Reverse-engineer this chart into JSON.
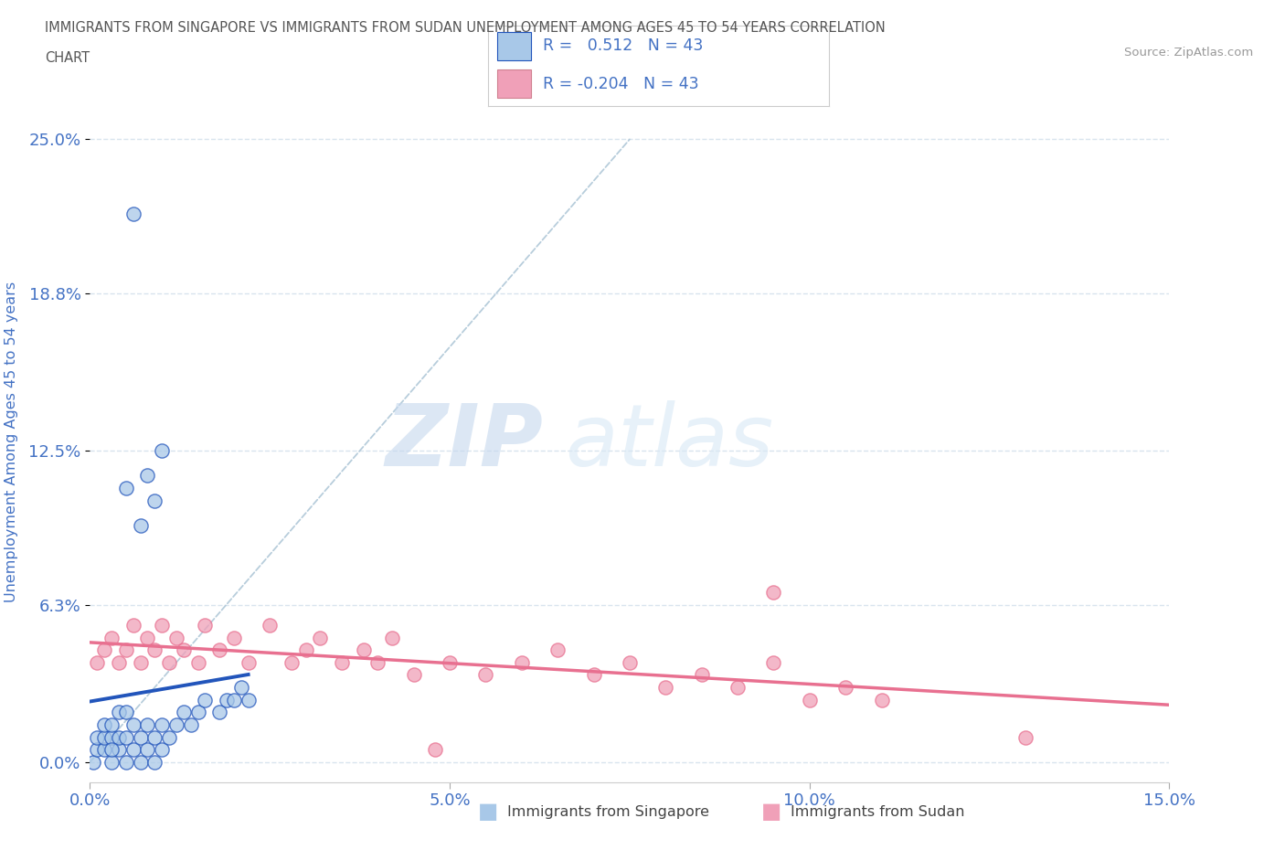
{
  "title_line1": "IMMIGRANTS FROM SINGAPORE VS IMMIGRANTS FROM SUDAN UNEMPLOYMENT AMONG AGES 45 TO 54 YEARS CORRELATION",
  "title_line2": "CHART",
  "source": "Source: ZipAtlas.com",
  "ylabel": "Unemployment Among Ages 45 to 54 years",
  "xmin": 0.0,
  "xmax": 0.15,
  "ymin": -0.008,
  "ymax": 0.265,
  "yticks": [
    0.0,
    0.063,
    0.125,
    0.188,
    0.25
  ],
  "ytick_labels": [
    "0.0%",
    "6.3%",
    "12.5%",
    "18.8%",
    "25.0%"
  ],
  "xticks": [
    0.0,
    0.05,
    0.1,
    0.15
  ],
  "xtick_labels": [
    "0.0%",
    "5.0%",
    "10.0%",
    "15.0%"
  ],
  "singapore_color": "#a8c8e8",
  "sudan_color": "#f0a0b8",
  "singapore_line_color": "#2255bb",
  "sudan_line_color": "#e87090",
  "ref_line_color": "#b0c8d8",
  "legend_R_singapore": "0.512",
  "legend_R_sudan": "-0.204",
  "legend_N": "43",
  "watermark_zip": "ZIP",
  "watermark_atlas": "atlas",
  "background_color": "#ffffff",
  "grid_color": "#d8e4ee",
  "title_color": "#555555",
  "axis_label_color": "#4472C4",
  "tick_label_color": "#4472C4",
  "sg_x": [
    0.0005,
    0.001,
    0.001,
    0.002,
    0.002,
    0.002,
    0.003,
    0.003,
    0.003,
    0.004,
    0.004,
    0.004,
    0.005,
    0.005,
    0.005,
    0.006,
    0.006,
    0.007,
    0.007,
    0.008,
    0.008,
    0.009,
    0.009,
    0.01,
    0.01,
    0.011,
    0.012,
    0.013,
    0.014,
    0.015,
    0.016,
    0.018,
    0.019,
    0.02,
    0.021,
    0.022,
    0.005,
    0.007,
    0.008,
    0.009,
    0.01,
    0.006,
    0.003
  ],
  "sg_y": [
    0.0,
    0.005,
    0.01,
    0.005,
    0.01,
    0.015,
    0.0,
    0.01,
    0.015,
    0.005,
    0.01,
    0.02,
    0.0,
    0.01,
    0.02,
    0.005,
    0.015,
    0.0,
    0.01,
    0.005,
    0.015,
    0.0,
    0.01,
    0.005,
    0.015,
    0.01,
    0.015,
    0.02,
    0.015,
    0.02,
    0.025,
    0.02,
    0.025,
    0.025,
    0.03,
    0.025,
    0.11,
    0.095,
    0.115,
    0.105,
    0.125,
    0.22,
    0.005
  ],
  "sd_x": [
    0.001,
    0.002,
    0.003,
    0.004,
    0.005,
    0.006,
    0.007,
    0.008,
    0.009,
    0.01,
    0.011,
    0.012,
    0.013,
    0.015,
    0.016,
    0.018,
    0.02,
    0.022,
    0.025,
    0.028,
    0.03,
    0.032,
    0.035,
    0.038,
    0.04,
    0.042,
    0.045,
    0.05,
    0.055,
    0.06,
    0.065,
    0.07,
    0.075,
    0.08,
    0.085,
    0.09,
    0.095,
    0.1,
    0.105,
    0.11,
    0.095,
    0.048,
    0.13
  ],
  "sd_y": [
    0.04,
    0.045,
    0.05,
    0.04,
    0.045,
    0.055,
    0.04,
    0.05,
    0.045,
    0.055,
    0.04,
    0.05,
    0.045,
    0.04,
    0.055,
    0.045,
    0.05,
    0.04,
    0.055,
    0.04,
    0.045,
    0.05,
    0.04,
    0.045,
    0.04,
    0.05,
    0.035,
    0.04,
    0.035,
    0.04,
    0.045,
    0.035,
    0.04,
    0.03,
    0.035,
    0.03,
    0.04,
    0.025,
    0.03,
    0.025,
    0.068,
    0.005,
    0.01
  ]
}
